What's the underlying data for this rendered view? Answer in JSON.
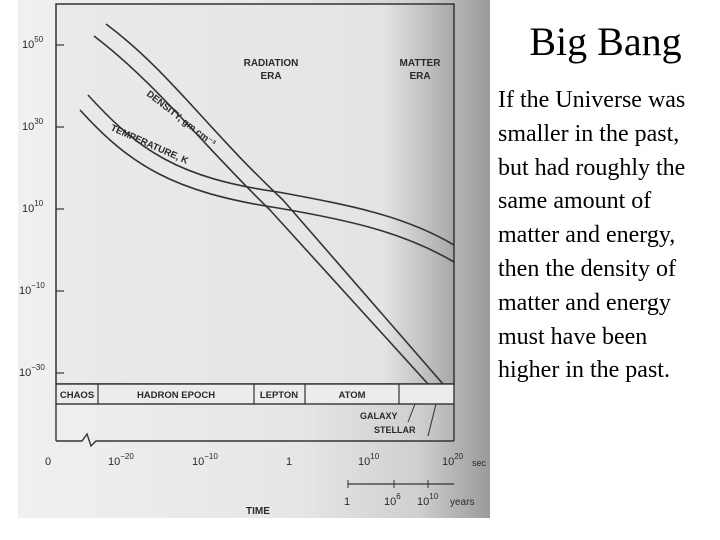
{
  "slide": {
    "title": "Big Bang",
    "body": "If the Universe was smaller in the past, but had roughly the same amount of matter and energy, then the density of matter and energy must have been higher in the past."
  },
  "figure": {
    "era_radiation": [
      "RADIATION",
      "ERA"
    ],
    "era_matter": [
      "MATTER",
      "ERA"
    ],
    "curve_density": "DENSITY, gm cm⁻³",
    "curve_temperature": "TEMPERATURE, K",
    "y_ticks": [
      {
        "base": "10",
        "exp": "50"
      },
      {
        "base": "10",
        "exp": "30"
      },
      {
        "base": "10",
        "exp": "10"
      },
      {
        "base": "10",
        "exp": "−10"
      },
      {
        "base": "10",
        "exp": "−30"
      }
    ],
    "epochs": [
      "CHAOS",
      "HADRON EPOCH",
      "LEPTON",
      "ATOM"
    ],
    "sub_epochs": [
      "GALAXY",
      "STELLAR"
    ],
    "x_ticks": [
      {
        "base": "0",
        "exp": ""
      },
      {
        "base": "10",
        "exp": "−20"
      },
      {
        "base": "10",
        "exp": "−10"
      },
      {
        "base": "1",
        "exp": ""
      },
      {
        "base": "10",
        "exp": "10"
      },
      {
        "base": "10",
        "exp": "20"
      }
    ],
    "x_unit": "sec",
    "years_ticks": [
      {
        "base": "1",
        "exp": ""
      },
      {
        "base": "10",
        "exp": "6"
      },
      {
        "base": "10",
        "exp": "10"
      }
    ],
    "years_unit": "years",
    "x_label": "TIME"
  }
}
